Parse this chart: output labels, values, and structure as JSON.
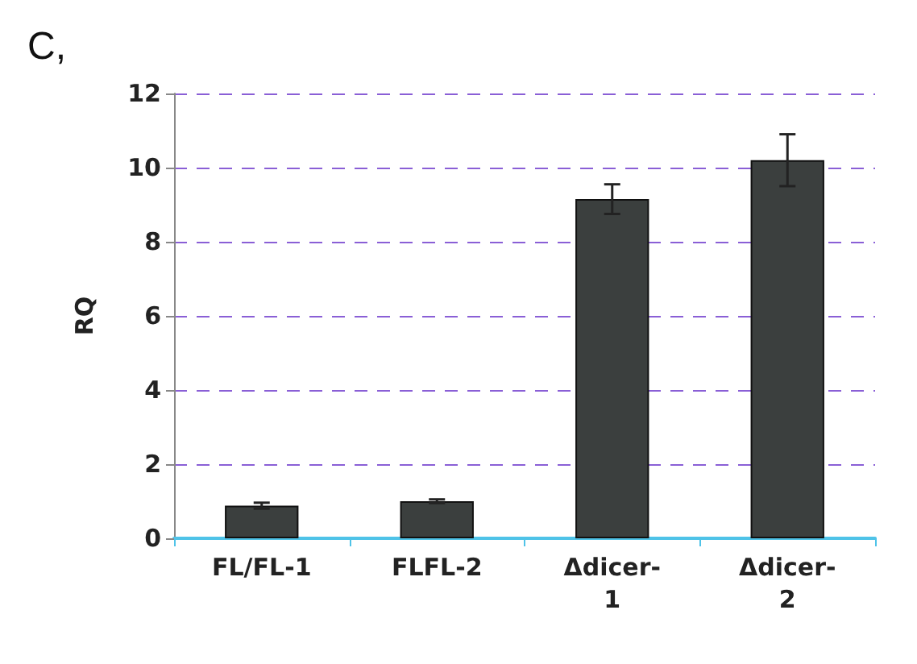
{
  "chart_data": {
    "type": "bar",
    "title": "C,",
    "ylabel": "RQ",
    "categories": [
      "FL/FL-1",
      "FLFL-2",
      "Δdicer-1",
      "Δdicer-2"
    ],
    "values": [
      0.88,
      1.0,
      9.15,
      10.2
    ],
    "errors": [
      0.08,
      0.05,
      0.4,
      0.7
    ],
    "color": "#3b3f3e",
    "ylim": [
      0,
      12
    ],
    "yticks": [
      0,
      2,
      4,
      6,
      8,
      10,
      12
    ],
    "grid": "y"
  }
}
